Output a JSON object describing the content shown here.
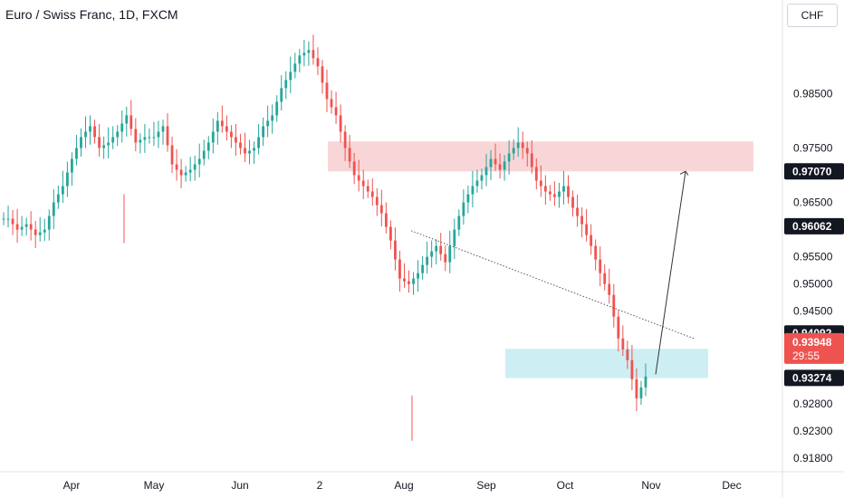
{
  "header": {
    "title": "Euro / Swiss Franc, 1D, FXCM"
  },
  "currency_button": {
    "label": "CHF"
  },
  "chart_data": {
    "type": "candlestick",
    "title": "Euro / Swiss Franc, 1D, FXCM",
    "ylim": [
      0.9155,
      1.0022
    ],
    "y_ticks": [
      "0.98500",
      "0.97500",
      "0.96500",
      "0.95500",
      "0.95000",
      "0.94500",
      "0.92800",
      "0.92300",
      "0.91800"
    ],
    "x_ticks": [
      "Apr",
      "May",
      "Jun",
      "2",
      "Aug",
      "Sep",
      "Oct",
      "Nov",
      "Dec"
    ],
    "price_tags": [
      {
        "label": "0.97070",
        "value": 0.9707,
        "style": "dark"
      },
      {
        "label": "0.96062",
        "value": 0.96062,
        "style": "dark"
      },
      {
        "label": "0.94092",
        "value": 0.94092,
        "style": "dark"
      },
      {
        "label": "0.93948",
        "countdown": "29:55",
        "value": 0.93948,
        "style": "current"
      },
      {
        "label": "0.93274",
        "value": 0.93274,
        "style": "dark"
      }
    ],
    "zones": [
      {
        "name": "resistance",
        "from": 0.9707,
        "to": 0.9762,
        "color": "#f8d6d8"
      },
      {
        "name": "support",
        "from": 0.9327,
        "to": 0.9381,
        "color": "#cdeff4"
      }
    ],
    "close_path": [
      [
        0.962,
        0.96
      ],
      [
        0.961,
        0.959
      ],
      [
        0.96,
        0.965
      ],
      [
        0.968,
        0.973
      ],
      [
        0.977,
        0.979
      ],
      [
        0.975,
        0.976
      ],
      [
        0.978,
        0.981
      ],
      [
        0.976,
        0.977
      ],
      [
        0.977,
        0.979
      ],
      [
        0.972,
        0.97
      ],
      [
        0.971,
        0.973
      ],
      [
        0.976,
        0.98
      ],
      [
        0.978,
        0.976
      ],
      [
        0.974,
        0.975
      ],
      [
        0.979,
        0.981
      ],
      [
        0.986,
        0.989
      ],
      [
        0.992,
        0.993
      ],
      [
        0.99,
        0.984
      ],
      [
        0.981,
        0.975
      ],
      [
        0.97,
        0.968
      ],
      [
        0.966,
        0.963
      ],
      [
        0.958,
        0.951
      ],
      [
        0.95,
        0.952
      ],
      [
        0.955,
        0.957
      ],
      [
        0.954,
        0.96
      ],
      [
        0.965,
        0.968
      ],
      [
        0.97,
        0.973
      ],
      [
        0.971,
        0.974
      ],
      [
        0.976,
        0.974
      ],
      [
        0.969,
        0.967
      ],
      [
        0.966,
        0.968
      ],
      [
        0.964,
        0.961
      ],
      [
        0.957,
        0.952
      ],
      [
        0.948,
        0.94
      ],
      [
        0.936,
        0.929
      ],
      [
        0.933,
        0.941
      ],
      [
        0.945,
        0.947
      ],
      [
        0.949,
        0.953
      ],
      [
        0.955,
        0.958
      ],
      [
        0.957,
        0.953
      ],
      [
        0.951,
        0.948
      ],
      [
        0.947,
        0.945
      ],
      [
        0.942,
        0.938
      ],
      [
        0.937,
        0.935
      ],
      [
        0.936,
        0.938
      ],
      [
        0.937,
        0.936
      ],
      [
        0.938,
        0.94
      ],
      [
        0.941,
        0.943
      ],
      [
        0.945,
        0.95
      ],
      [
        0.947,
        0.944
      ],
      [
        0.94,
        0.938
      ],
      [
        0.937,
        0.939
      ],
      [
        0.94,
        0.938
      ],
      [
        0.937,
        0.939
      ],
      [
        0.938,
        0.936
      ],
      [
        0.935,
        0.937
      ],
      [
        0.938,
        0.935
      ],
      [
        0.936,
        0.938
      ],
      [
        0.9395,
        0.93948
      ]
    ],
    "annotations": [
      {
        "type": "dotted-trendline",
        "from": [
          0.9598,
          "Aug"
        ],
        "to": [
          0.94,
          "Nov"
        ]
      },
      {
        "type": "arrow",
        "from": [
          0.9334,
          "Nov"
        ],
        "to": [
          0.9707,
          "Nov"
        ]
      }
    ]
  }
}
